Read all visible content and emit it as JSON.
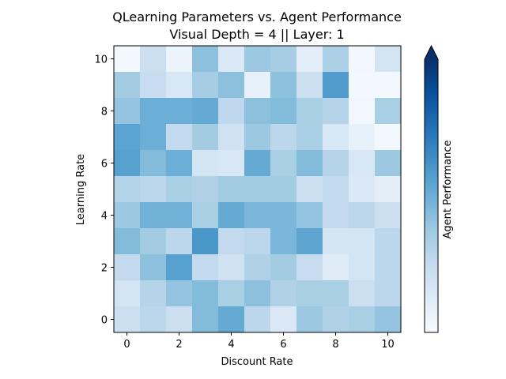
{
  "chart_data": {
    "type": "heatmap",
    "title": "QLearning Parameters vs. Agent Performance",
    "subtitle": "Visual Depth = 4 || Layer: 1",
    "xlabel": "Discount Rate",
    "ylabel": "Learning Rate",
    "colorbar_label": "Agent Performance",
    "colormap": "Blues",
    "colorbar_extend": "max",
    "xlim": [
      -0.5,
      10.5
    ],
    "ylim": [
      -0.5,
      10.5
    ],
    "x_ticks": [
      0,
      2,
      4,
      6,
      8,
      10
    ],
    "y_ticks": [
      0,
      2,
      4,
      6,
      8,
      10
    ],
    "x": [
      0,
      1,
      2,
      3,
      4,
      5,
      6,
      7,
      8,
      9,
      10
    ],
    "y": [
      0,
      1,
      2,
      3,
      4,
      5,
      6,
      7,
      8,
      9,
      10
    ],
    "rows_top_to_bottom_y": [
      10,
      9,
      8,
      7,
      6,
      5,
      4,
      3,
      2,
      1,
      0
    ],
    "values": [
      [
        0.02,
        0.22,
        0.06,
        0.42,
        0.14,
        0.38,
        0.35,
        0.1,
        0.33,
        0.03,
        0.18
      ],
      [
        0.36,
        0.24,
        0.16,
        0.35,
        0.42,
        0.08,
        0.42,
        0.22,
        0.58,
        0.02,
        0.02
      ],
      [
        0.4,
        0.5,
        0.5,
        0.52,
        0.27,
        0.42,
        0.44,
        0.34,
        0.3,
        0.03,
        0.34
      ],
      [
        0.55,
        0.5,
        0.26,
        0.36,
        0.2,
        0.38,
        0.28,
        0.34,
        0.16,
        0.08,
        0.02
      ],
      [
        0.56,
        0.44,
        0.5,
        0.18,
        0.16,
        0.52,
        0.34,
        0.44,
        0.3,
        0.16,
        0.38
      ],
      [
        0.31,
        0.28,
        0.34,
        0.32,
        0.36,
        0.36,
        0.36,
        0.22,
        0.26,
        0.14,
        0.1
      ],
      [
        0.38,
        0.48,
        0.48,
        0.34,
        0.52,
        0.46,
        0.46,
        0.4,
        0.26,
        0.28,
        0.22
      ],
      [
        0.44,
        0.36,
        0.28,
        0.6,
        0.26,
        0.28,
        0.46,
        0.54,
        0.18,
        0.18,
        0.28
      ],
      [
        0.26,
        0.42,
        0.56,
        0.26,
        0.2,
        0.32,
        0.36,
        0.24,
        0.12,
        0.18,
        0.28
      ],
      [
        0.18,
        0.3,
        0.4,
        0.44,
        0.34,
        0.42,
        0.32,
        0.34,
        0.34,
        0.22,
        0.28
      ],
      [
        0.22,
        0.28,
        0.22,
        0.44,
        0.52,
        0.28,
        0.14,
        0.38,
        0.32,
        0.34,
        0.4
      ]
    ],
    "colorbar_range": [
      0,
      1
    ]
  }
}
